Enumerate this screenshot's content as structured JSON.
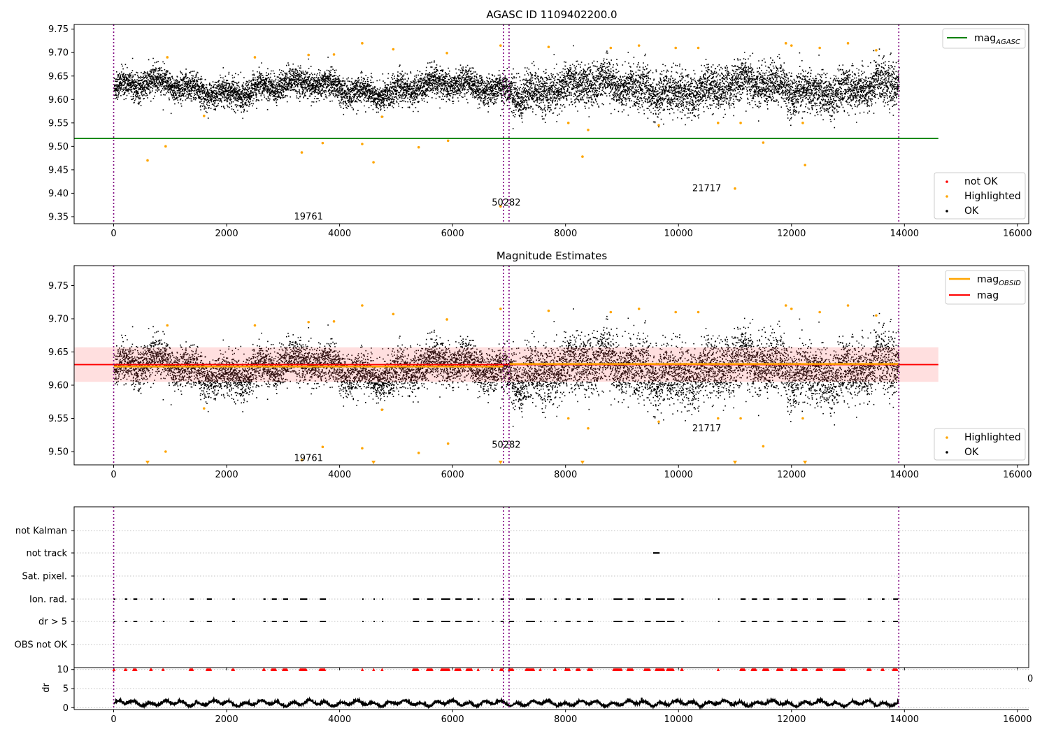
{
  "figure": {
    "title_top": "AGASC ID 1109402200.0",
    "title_middle": "Magnitude Estimates"
  },
  "chart_data": [
    {
      "type": "scatter",
      "title": "AGASC ID 1109402200.0",
      "xlim": [
        -700,
        16200
      ],
      "ylim": [
        9.335,
        9.76
      ],
      "xticks": [
        0,
        2000,
        4000,
        6000,
        8000,
        10000,
        12000,
        14000,
        16000
      ],
      "yticks": [
        9.35,
        9.4,
        9.45,
        9.5,
        9.55,
        9.6,
        9.65,
        9.7,
        9.75
      ],
      "ytick_labels": [
        "9.35",
        "9.40",
        "9.45",
        "9.50",
        "9.55",
        "9.60",
        "9.65",
        "9.70",
        "9.75"
      ],
      "hline": {
        "label": "mag_AGASC",
        "y": 9.517,
        "x": [
          -700,
          14600
        ],
        "color": "#008000"
      },
      "obs_boundaries": [
        0,
        6900,
        7000,
        13900
      ],
      "obs_labels": [
        {
          "text": "19761",
          "x": 3450,
          "y": 9.35
        },
        {
          "text": "50282",
          "x": 6950,
          "y": 9.38
        },
        {
          "text": "21717",
          "x": 10500,
          "y": 9.41
        }
      ],
      "series": [
        {
          "name": "not OK",
          "color": "#ff0000",
          "points": []
        },
        {
          "name": "Highlighted",
          "color": "#ffa500",
          "points": [
            [
              600,
              9.47
            ],
            [
              920,
              9.5
            ],
            [
              1600,
              9.565
            ],
            [
              3330,
              9.487
            ],
            [
              3700,
              9.507
            ],
            [
              4400,
              9.505
            ],
            [
              4600,
              9.466
            ],
            [
              4750,
              9.563
            ],
            [
              5400,
              9.498
            ],
            [
              5920,
              9.512
            ],
            [
              6850,
              9.372
            ],
            [
              8300,
              9.478
            ],
            [
              8050,
              9.55
            ],
            [
              8400,
              9.535
            ],
            [
              9650,
              9.545
            ],
            [
              10700,
              9.55
            ],
            [
              11000,
              9.41
            ],
            [
              11100,
              9.55
            ],
            [
              11500,
              9.508
            ],
            [
              12200,
              9.55
            ],
            [
              12240,
              9.46
            ],
            [
              4400,
              9.72
            ],
            [
              6850,
              9.715
            ],
            [
              7700,
              9.712
            ],
            [
              8800,
              9.71
            ],
            [
              9300,
              9.715
            ],
            [
              9950,
              9.71
            ],
            [
              10350,
              9.71
            ],
            [
              11900,
              9.72
            ],
            [
              12000,
              9.715
            ],
            [
              12500,
              9.71
            ],
            [
              13000,
              9.72
            ],
            [
              13500,
              9.705
            ],
            [
              950,
              9.69
            ],
            [
              2500,
              9.69
            ],
            [
              3450,
              9.695
            ],
            [
              3900,
              9.696
            ],
            [
              4950,
              9.707
            ],
            [
              5900,
              9.699
            ]
          ]
        },
        {
          "name": "OK",
          "color": "#000000",
          "points": "dense band 9.56-9.70 for x 0-13900"
        }
      ],
      "legend_top": "top-right",
      "legend_bottom": "lower-right"
    },
    {
      "type": "scatter",
      "title": "Magnitude Estimates",
      "xlim": [
        -700,
        16200
      ],
      "ylim": [
        9.48,
        9.78
      ],
      "xticks": [
        0,
        2000,
        4000,
        6000,
        8000,
        10000,
        12000,
        14000,
        16000
      ],
      "yticks": [
        9.5,
        9.55,
        9.6,
        9.65,
        9.7,
        9.75
      ],
      "ytick_labels": [
        "9.50",
        "9.55",
        "9.60",
        "9.65",
        "9.70",
        "9.75"
      ],
      "mag_line": {
        "label": "mag",
        "y": 9.631,
        "x": [
          -700,
          14600
        ],
        "color": "#ff0000"
      },
      "mag_band": [
        9.605,
        9.657
      ],
      "mag_obsid": [
        {
          "x": [
            0,
            6900
          ],
          "y": 9.628
        },
        {
          "x": [
            7000,
            13900
          ],
          "y": 9.632
        }
      ],
      "obs_boundaries": [
        0,
        6900,
        7000,
        13900
      ],
      "obs_labels": [
        {
          "text": "19761",
          "x": 3450,
          "y": 9.49
        },
        {
          "text": "50282",
          "x": 6950,
          "y": 9.51
        },
        {
          "text": "21717",
          "x": 10500,
          "y": 9.535
        }
      ],
      "series": [
        {
          "name": "Highlighted",
          "color": "#ffa500"
        },
        {
          "name": "OK",
          "color": "#000000"
        }
      ],
      "legend_top": "top-right",
      "legend_bottom": "lower-right"
    },
    {
      "type": "scatter",
      "title": "",
      "xlim": [
        -700,
        16200
      ],
      "xticks": [
        0,
        2000,
        4000,
        6000,
        8000,
        10000,
        12000,
        14000,
        16000
      ],
      "categories": [
        "not Kalman",
        "not track",
        "Sat. pixel.",
        "Ion. rad.",
        "dr > 5",
        "OBS not OK"
      ],
      "obs_boundaries": [
        0,
        6900,
        7000,
        13900
      ]
    },
    {
      "type": "line",
      "title": "",
      "ylabel": "dr",
      "xlim": [
        -700,
        16200
      ],
      "ylim": [
        -0.5,
        10.5
      ],
      "yticks": [
        0,
        5,
        10
      ],
      "ytick_labels": [
        "0",
        "5",
        "10"
      ],
      "xticks": [
        0,
        2000,
        4000,
        6000,
        8000,
        10000,
        12000,
        14000,
        16000
      ],
      "xtick_labels": [
        "0",
        "2000",
        "4000",
        "6000",
        "8000",
        "10000",
        "12000",
        "14000",
        "16000"
      ],
      "obs_boundaries": [
        0,
        6900,
        7000,
        13900
      ]
    }
  ],
  "legends": {
    "top_right": [
      {
        "label": "mag",
        "sub": "AGASC",
        "color": "#008000"
      }
    ],
    "top_points": [
      {
        "label": "not OK",
        "color": "#ff0000"
      },
      {
        "label": "Highlighted",
        "color": "#ffa500"
      },
      {
        "label": "OK",
        "color": "#000000"
      }
    ],
    "mid_right": [
      {
        "label": "mag",
        "sub": "OBSID",
        "color": "#ffa500"
      },
      {
        "label": "mag",
        "sub": "",
        "color": "#ff0000"
      }
    ],
    "mid_points": [
      {
        "label": "Highlighted",
        "color": "#ffa500"
      },
      {
        "label": "OK",
        "color": "#000000"
      }
    ]
  },
  "stray_tick": "0"
}
